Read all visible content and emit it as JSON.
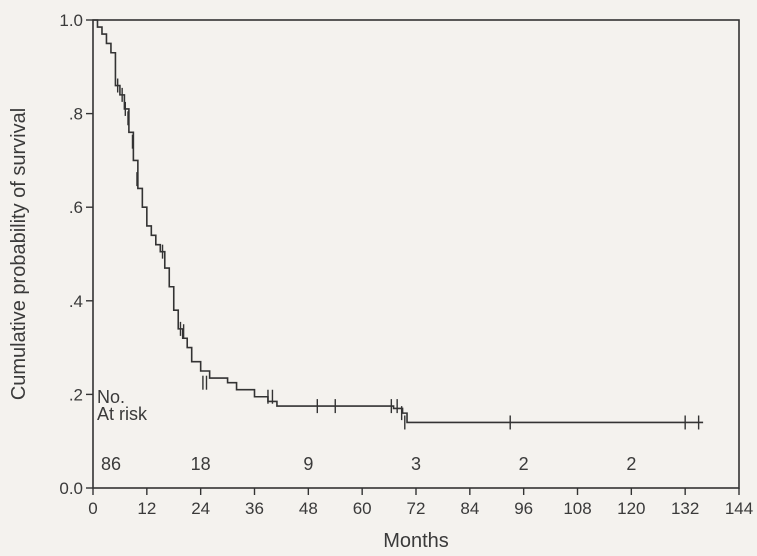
{
  "chart_data": {
    "type": "line",
    "subtype": "kaplan-meier-survival-curve",
    "title": "",
    "xlabel": "Months",
    "ylabel": "Cumulative probability of survival",
    "xlim": [
      0,
      144
    ],
    "ylim": [
      0,
      1.0
    ],
    "x_ticks": [
      0,
      12,
      24,
      36,
      48,
      60,
      72,
      84,
      96,
      108,
      120,
      132,
      144
    ],
    "x_tick_labels": [
      "0",
      "12",
      "24",
      "36",
      "48",
      "60",
      "72",
      "84",
      "96",
      "108",
      "120",
      "132",
      "144"
    ],
    "y_ticks": [
      0,
      0.2,
      0.4,
      0.6,
      0.8,
      1.0
    ],
    "y_tick_labels": [
      "0.0",
      ".2",
      ".4",
      ".6",
      ".8",
      "1.0"
    ],
    "grid": false,
    "legend": "none",
    "series": [
      {
        "x": [
          0,
          1,
          2,
          3,
          4,
          5,
          6,
          7,
          8,
          9,
          10,
          11,
          12,
          13,
          14,
          15,
          16,
          17,
          18,
          19,
          20,
          21,
          22,
          24,
          26,
          30,
          32,
          36,
          39,
          41,
          67,
          69,
          70,
          136
        ],
        "y": [
          1.0,
          0.985,
          0.97,
          0.95,
          0.93,
          0.86,
          0.84,
          0.81,
          0.76,
          0.7,
          0.64,
          0.6,
          0.56,
          0.54,
          0.52,
          0.505,
          0.47,
          0.43,
          0.38,
          0.34,
          0.32,
          0.3,
          0.27,
          0.25,
          0.235,
          0.225,
          0.21,
          0.195,
          0.185,
          0.175,
          0.17,
          0.16,
          0.14,
          0.14
        ]
      }
    ],
    "censor_marks": [
      {
        "x": 5.5,
        "y": 0.86
      },
      {
        "x": 6.5,
        "y": 0.84
      },
      {
        "x": 7.2,
        "y": 0.81
      },
      {
        "x": 7.8,
        "y": 0.79
      },
      {
        "x": 8.8,
        "y": 0.74
      },
      {
        "x": 9.8,
        "y": 0.66
      },
      {
        "x": 15.5,
        "y": 0.505
      },
      {
        "x": 19.5,
        "y": 0.34
      },
      {
        "x": 20.2,
        "y": 0.335
      },
      {
        "x": 24.5,
        "y": 0.225
      },
      {
        "x": 25.3,
        "y": 0.225
      },
      {
        "x": 39.0,
        "y": 0.195
      },
      {
        "x": 40.0,
        "y": 0.195
      },
      {
        "x": 50.0,
        "y": 0.175
      },
      {
        "x": 54.0,
        "y": 0.175
      },
      {
        "x": 66.5,
        "y": 0.175
      },
      {
        "x": 67.8,
        "y": 0.175
      },
      {
        "x": 68.8,
        "y": 0.16
      },
      {
        "x": 69.5,
        "y": 0.14
      },
      {
        "x": 93.0,
        "y": 0.14
      },
      {
        "x": 132.0,
        "y": 0.14
      },
      {
        "x": 135.0,
        "y": 0.14
      }
    ],
    "at_risk": {
      "label_line1": "No.",
      "label_line2": "At  risk",
      "values": [
        {
          "x": 0,
          "label": "86"
        },
        {
          "x": 24,
          "label": "18"
        },
        {
          "x": 48,
          "label": "9"
        },
        {
          "x": 72,
          "label": "3"
        },
        {
          "x": 96,
          "label": "2"
        },
        {
          "x": 120,
          "label": "2"
        }
      ]
    }
  }
}
